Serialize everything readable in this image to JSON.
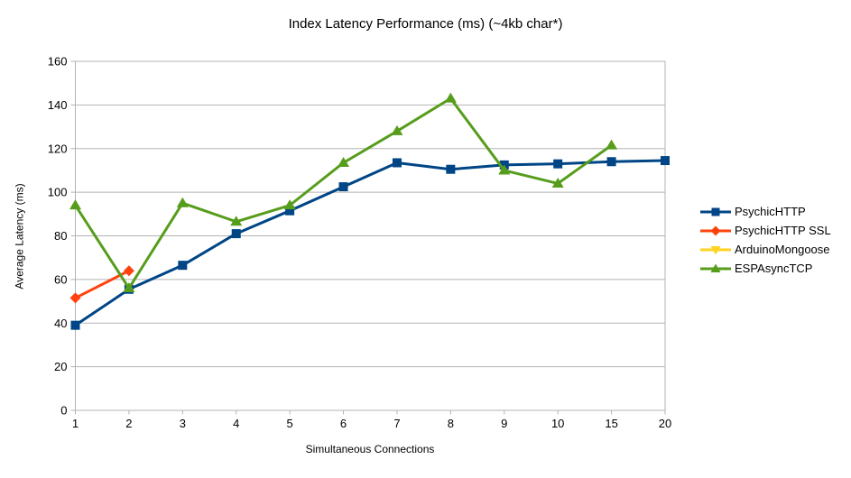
{
  "chart": {
    "title": "Index Latency Performance (ms) (~4kb char*)",
    "xlabel": "Simultaneous Connections",
    "ylabel": "Average Latency (ms)"
  },
  "chart_data": {
    "type": "line",
    "title": "Index Latency Performance (ms) (~4kb char*)",
    "xlabel": "Simultaneous Connections",
    "ylabel": "Average Latency (ms)",
    "categories": [
      "1",
      "2",
      "3",
      "4",
      "5",
      "6",
      "7",
      "8",
      "9",
      "10",
      "15",
      "20"
    ],
    "ylim": [
      0,
      160
    ],
    "ytick_step": 20,
    "ytick_labels": [
      "0",
      "20",
      "40",
      "60",
      "80",
      "100",
      "120",
      "140",
      "160"
    ],
    "grid": true,
    "legend_position": "right",
    "series": [
      {
        "name": "PsychicHTTP",
        "color": "#004586",
        "marker": "square",
        "values": [
          39,
          55.5,
          66.5,
          81,
          91.5,
          102.5,
          113.5,
          110.5,
          112.5,
          113,
          114,
          114.5
        ]
      },
      {
        "name": "PsychicHTTP SSL",
        "color": "#FF420E",
        "marker": "diamond",
        "values": [
          51.5,
          64,
          null,
          null,
          null,
          null,
          null,
          null,
          null,
          null,
          null,
          null
        ]
      },
      {
        "name": "ArduinoMongoose",
        "color": "#FFD320",
        "marker": "triangle-down",
        "values": [
          null,
          null,
          null,
          null,
          null,
          null,
          null,
          null,
          null,
          null,
          null,
          null
        ]
      },
      {
        "name": "ESPAsyncTCP",
        "color": "#579D1C",
        "marker": "triangle-up",
        "values": [
          94,
          56,
          95,
          86.5,
          94,
          113.5,
          128,
          143,
          110,
          104,
          121.5,
          null
        ]
      }
    ],
    "colors": {
      "axis": "#b3b3b3",
      "grid": "#b3b3b3",
      "text": "#000000",
      "background": "#ffffff"
    }
  }
}
